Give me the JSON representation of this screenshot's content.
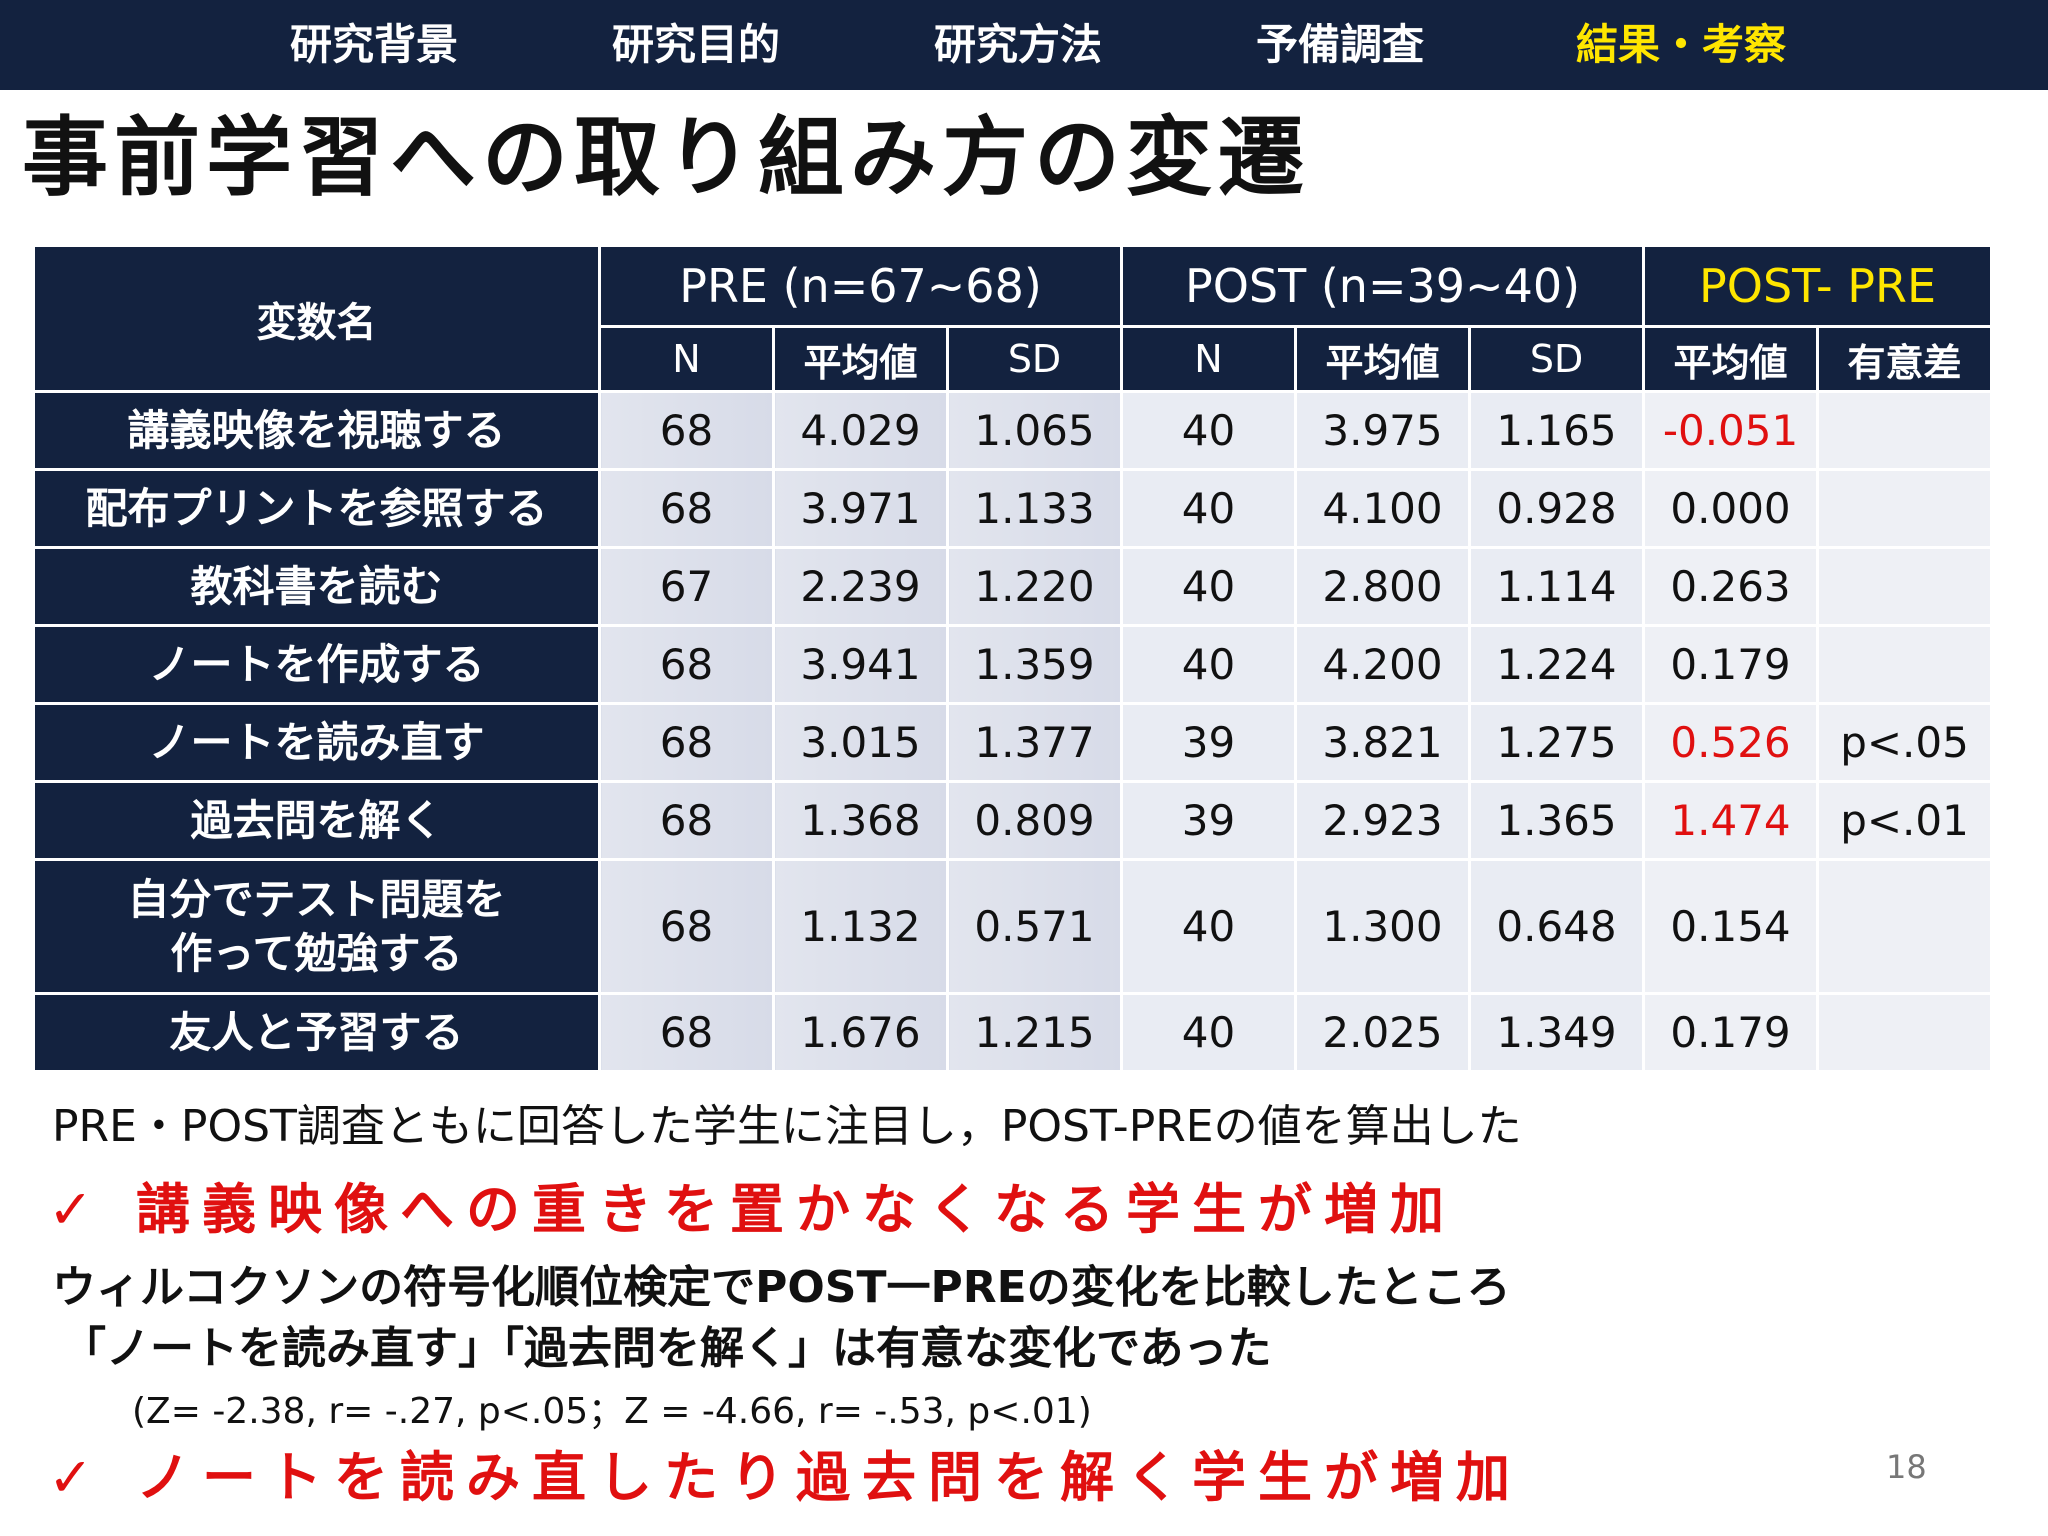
{
  "nav": {
    "items": [
      "研究背景",
      "研究目的",
      "研究方法",
      "予備調査",
      "結果・考察"
    ],
    "active_index": 4,
    "active_color": "#ffe600",
    "bg_color": "#13223f"
  },
  "title": "事前学習への取り組み方の変遷",
  "table": {
    "var_header": "変数名",
    "group_pre": "PRE (n=67~68)",
    "group_post": "POST (n=39~40)",
    "group_diff": "POST- PRE",
    "sub_n": "N",
    "sub_mean": "平均値",
    "sub_sd": "SD",
    "sub_sig": "有意差",
    "rows": [
      {
        "label": "講義映像を視聴する",
        "label2": "",
        "pre_n": "68",
        "pre_mean": "4.029",
        "pre_sd": "1.065",
        "post_n": "40",
        "post_mean": "3.975",
        "post_sd": "1.165",
        "diff": "-0.051",
        "sig": "",
        "highlight": true
      },
      {
        "label": "配布プリントを参照する",
        "label2": "",
        "pre_n": "68",
        "pre_mean": "3.971",
        "pre_sd": "1.133",
        "post_n": "40",
        "post_mean": "4.100",
        "post_sd": "0.928",
        "diff": "0.000",
        "sig": "",
        "highlight": false
      },
      {
        "label": "教科書を読む",
        "label2": "",
        "pre_n": "67",
        "pre_mean": "2.239",
        "pre_sd": "1.220",
        "post_n": "40",
        "post_mean": "2.800",
        "post_sd": "1.114",
        "diff": "0.263",
        "sig": "",
        "highlight": false
      },
      {
        "label": "ノートを作成する",
        "label2": "",
        "pre_n": "68",
        "pre_mean": "3.941",
        "pre_sd": "1.359",
        "post_n": "40",
        "post_mean": "4.200",
        "post_sd": "1.224",
        "diff": "0.179",
        "sig": "",
        "highlight": false
      },
      {
        "label": "ノートを読み直す",
        "label2": "",
        "pre_n": "68",
        "pre_mean": "3.015",
        "pre_sd": "1.377",
        "post_n": "39",
        "post_mean": "3.821",
        "post_sd": "1.275",
        "diff": "0.526",
        "sig": "p<.05",
        "highlight": true
      },
      {
        "label": "過去問を解く",
        "label2": "",
        "pre_n": "68",
        "pre_mean": "1.368",
        "pre_sd": "0.809",
        "post_n": "39",
        "post_mean": "2.923",
        "post_sd": "1.365",
        "diff": "1.474",
        "sig": "p<.01",
        "highlight": true
      },
      {
        "label": "自分でテスト問題を",
        "label2": "作って勉強する",
        "pre_n": "68",
        "pre_mean": "1.132",
        "pre_sd": "0.571",
        "post_n": "40",
        "post_mean": "1.300",
        "post_sd": "0.648",
        "diff": "0.154",
        "sig": "",
        "highlight": false
      },
      {
        "label": "友人と予習する",
        "label2": "",
        "pre_n": "68",
        "pre_mean": "1.676",
        "pre_sd": "1.215",
        "post_n": "40",
        "post_mean": "2.025",
        "post_sd": "1.349",
        "diff": "0.179",
        "sig": "",
        "highlight": false
      }
    ],
    "header_bg": "#13223f",
    "highlight_color": "#e01010"
  },
  "notes": {
    "line1": "PRE・POST調査ともに回答した学生に注目し，POST-PREの値を算出した",
    "check1": "✓ 講義映像への重きを置かなくなる学生が増加",
    "line2": "ウィルコクソンの符号化順位検定でPOST一PREの変化を比較したところ",
    "line3": "「ノートを読み直す」「過去問を解く」は有意な変化であった",
    "stats": "(Z= -2.38, r= -.27, p<.05；Z = -4.66, r= -.53, p<.01)",
    "check2": "✓ ノートを読み直したり過去問を解く学生が増加"
  },
  "page_number": "18"
}
